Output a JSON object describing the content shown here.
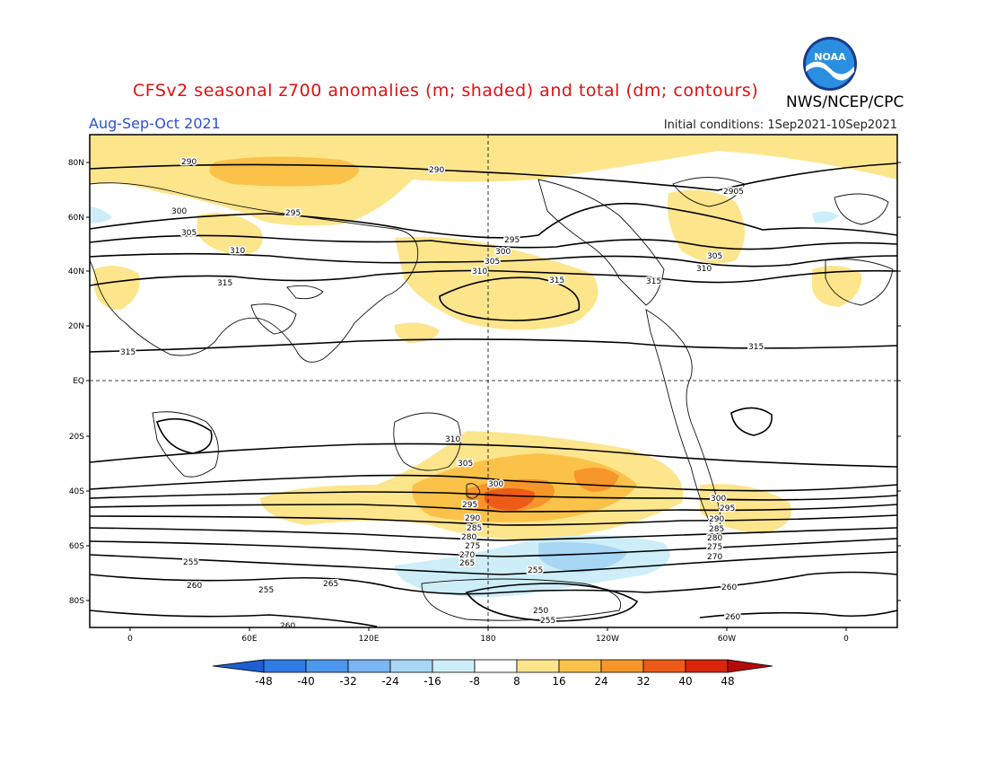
{
  "header": {
    "title": "CFSv2 seasonal z700 anomalies (m; shaded) and total (dm; contours)",
    "agency": "NWS/NCEP/CPC",
    "season": "Aug-Sep-Oct 2021",
    "initial_conditions": "Initial conditions: 1Sep2021-10Sep2021",
    "logo_text": "NOAA"
  },
  "axes": {
    "lat_labels": [
      "80N",
      "60N",
      "40N",
      "20N",
      "EQ",
      "20S",
      "40S",
      "60S",
      "80S"
    ],
    "lon_labels": [
      "0",
      "60E",
      "120E",
      "180",
      "120W",
      "60W",
      "0"
    ]
  },
  "colorbar": {
    "labels": [
      "-48",
      "-40",
      "-32",
      "-24",
      "-16",
      "-8",
      "8",
      "16",
      "24",
      "32",
      "40",
      "48"
    ],
    "colors": [
      "#1e5fd6",
      "#2f7be8",
      "#4d97ee",
      "#79b6f2",
      "#a8d6f5",
      "#cdeef8",
      "#ffffff",
      "#fde58c",
      "#fbc24a",
      "#f6962a",
      "#ee5a18",
      "#d9260d",
      "#b50a08"
    ]
  },
  "contour_labels": [
    "290",
    "290",
    "2905",
    "300",
    "295",
    "305",
    "295",
    "300",
    "310",
    "305",
    "310",
    "315",
    "315",
    "315",
    "315",
    "310",
    "315",
    "305",
    "310",
    "300",
    "305",
    "295",
    "300",
    "290",
    "295",
    "285",
    "290",
    "280",
    "285",
    "275",
    "280",
    "270",
    "275",
    "265",
    "270",
    "255",
    "255",
    "260",
    "265",
    "260",
    "255",
    "250",
    "255",
    "260"
  ]
}
